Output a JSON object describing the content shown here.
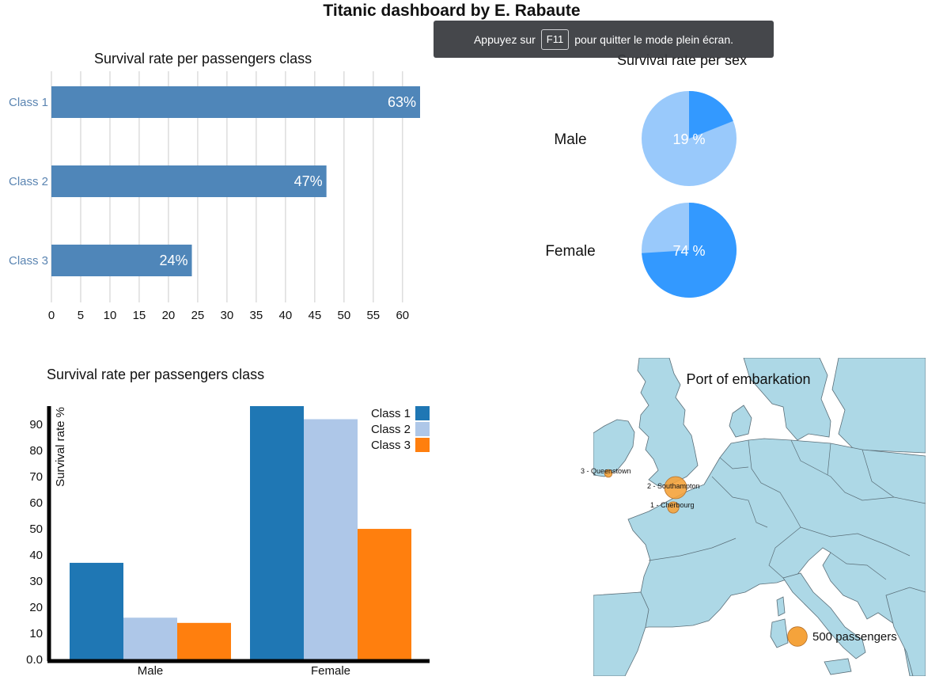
{
  "page": {
    "title": "Titanic dashboard by E. Rabaute"
  },
  "fullscreen_notice": {
    "before": "Appuyez sur",
    "key": "F11",
    "after": "pour quitter le mode plein écran."
  },
  "colors": {
    "class_bar": "#4f86b9",
    "pie_light": "#99c9fb",
    "pie_dark": "#3399ff",
    "class1": "#1f77b4",
    "class2": "#aec7e8",
    "class3": "#ff7f0e",
    "sea": "#ffffff",
    "land": "#add8e6",
    "marker": "#f5a33b"
  },
  "chart_data": [
    {
      "type": "bar",
      "orientation": "horizontal",
      "title": "Survival rate per passengers class",
      "categories": [
        "Class 1",
        "Class 2",
        "Class 3"
      ],
      "values": [
        63,
        47,
        24
      ],
      "value_labels": [
        "63%",
        "47%",
        "24%"
      ],
      "xlim": [
        0,
        63
      ],
      "ticks": [
        0,
        5,
        10,
        15,
        20,
        25,
        30,
        35,
        40,
        45,
        50,
        55,
        60
      ],
      "grid": true
    },
    {
      "type": "pie",
      "title": "Survival rate per sex",
      "pies": [
        {
          "label": "Male",
          "value": 19,
          "value_label": "19 %"
        },
        {
          "label": "Female",
          "value": 74,
          "value_label": "74 %"
        }
      ]
    },
    {
      "type": "bar",
      "orientation": "grouped",
      "title": "Survival rate per passengers class",
      "ylabel": "Survival rate %",
      "categories": [
        "Male",
        "Female"
      ],
      "series": [
        {
          "name": "Class 1",
          "values": [
            37,
            97
          ]
        },
        {
          "name": "Class 2",
          "values": [
            16,
            92
          ]
        },
        {
          "name": "Class 3",
          "values": [
            14,
            50
          ]
        }
      ],
      "ylim": [
        0,
        97
      ],
      "yticks": [
        "0.0",
        "10",
        "20",
        "30",
        "40",
        "50",
        "60",
        "70",
        "80",
        "90"
      ],
      "legend": "top-right"
    }
  ],
  "map": {
    "title": "Port of embarkation",
    "ports": [
      {
        "label": "3 - Queenstown",
        "passengers": 77
      },
      {
        "label": "2 - Southampton",
        "passengers": 644
      },
      {
        "label": "1 - Cherbourg",
        "passengers": 168
      }
    ],
    "legend": {
      "label": "500 passengers",
      "passengers": 500
    }
  }
}
